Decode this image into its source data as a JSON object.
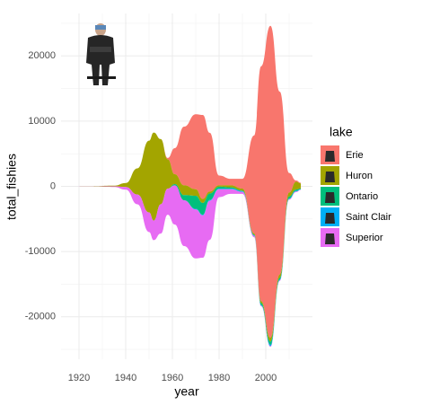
{
  "chart_data": {
    "type": "streamgraph",
    "x_label": "year",
    "y_label": "total_fishies",
    "legend_title": "lake",
    "legend_position": "right",
    "grid": true,
    "xlim": [
      1912.3,
      2020
    ],
    "ylim": [
      -26500,
      26500
    ],
    "xticks": [
      1920,
      1940,
      1960,
      1980,
      2000
    ],
    "yticks": [
      -20000,
      -10000,
      0,
      10000,
      20000
    ],
    "xminorticks": [
      1930,
      1950,
      1970,
      1990,
      2010
    ],
    "yminorticks": [
      -25000,
      -15000,
      -5000,
      5000,
      15000,
      25000
    ],
    "x": [
      1915,
      1925,
      1935,
      1940,
      1945,
      1950,
      1952,
      1955,
      1958,
      1961,
      1965,
      1970,
      1973,
      1976,
      1980,
      1985,
      1990,
      1995,
      1998,
      2002,
      2006,
      2010,
      2013,
      2015
    ],
    "series": [
      {
        "name": "Erie",
        "color": "#f8766d",
        "values": [
          0,
          0,
          0,
          0,
          0,
          0,
          0,
          0,
          200,
          4000,
          9000,
          11500,
          12900,
          9000,
          1500,
          1000,
          1500,
          15000,
          36000,
          47800,
          28000,
          3000,
          200,
          100
        ]
      },
      {
        "name": "Huron",
        "color": "#a3a500",
        "values": [
          0,
          20,
          100,
          600,
          4000,
          11000,
          13500,
          10000,
          4500,
          1500,
          1500,
          1000,
          600,
          300,
          200,
          300,
          300,
          200,
          300,
          600,
          500,
          600,
          1200,
          800
        ]
      },
      {
        "name": "Ontario",
        "color": "#00bf7d",
        "values": [
          0,
          0,
          0,
          0,
          0,
          0,
          0,
          0,
          0,
          200,
          800,
          2000,
          1800,
          1000,
          300,
          200,
          100,
          100,
          300,
          500,
          300,
          300,
          200,
          100
        ]
      },
      {
        "name": "Saint Clair",
        "color": "#00b0f6",
        "values": [
          0,
          0,
          0,
          0,
          0,
          0,
          0,
          0,
          0,
          0,
          0,
          100,
          100,
          100,
          100,
          100,
          100,
          100,
          100,
          200,
          100,
          100,
          100,
          50
        ]
      },
      {
        "name": "Superior",
        "color": "#e76bf3",
        "values": [
          0,
          20,
          100,
          400,
          1500,
          3000,
          3000,
          4500,
          4000,
          6000,
          7000,
          7500,
          6500,
          6000,
          1200,
          700,
          300,
          200,
          100,
          100,
          100,
          100,
          100,
          50
        ]
      }
    ]
  }
}
